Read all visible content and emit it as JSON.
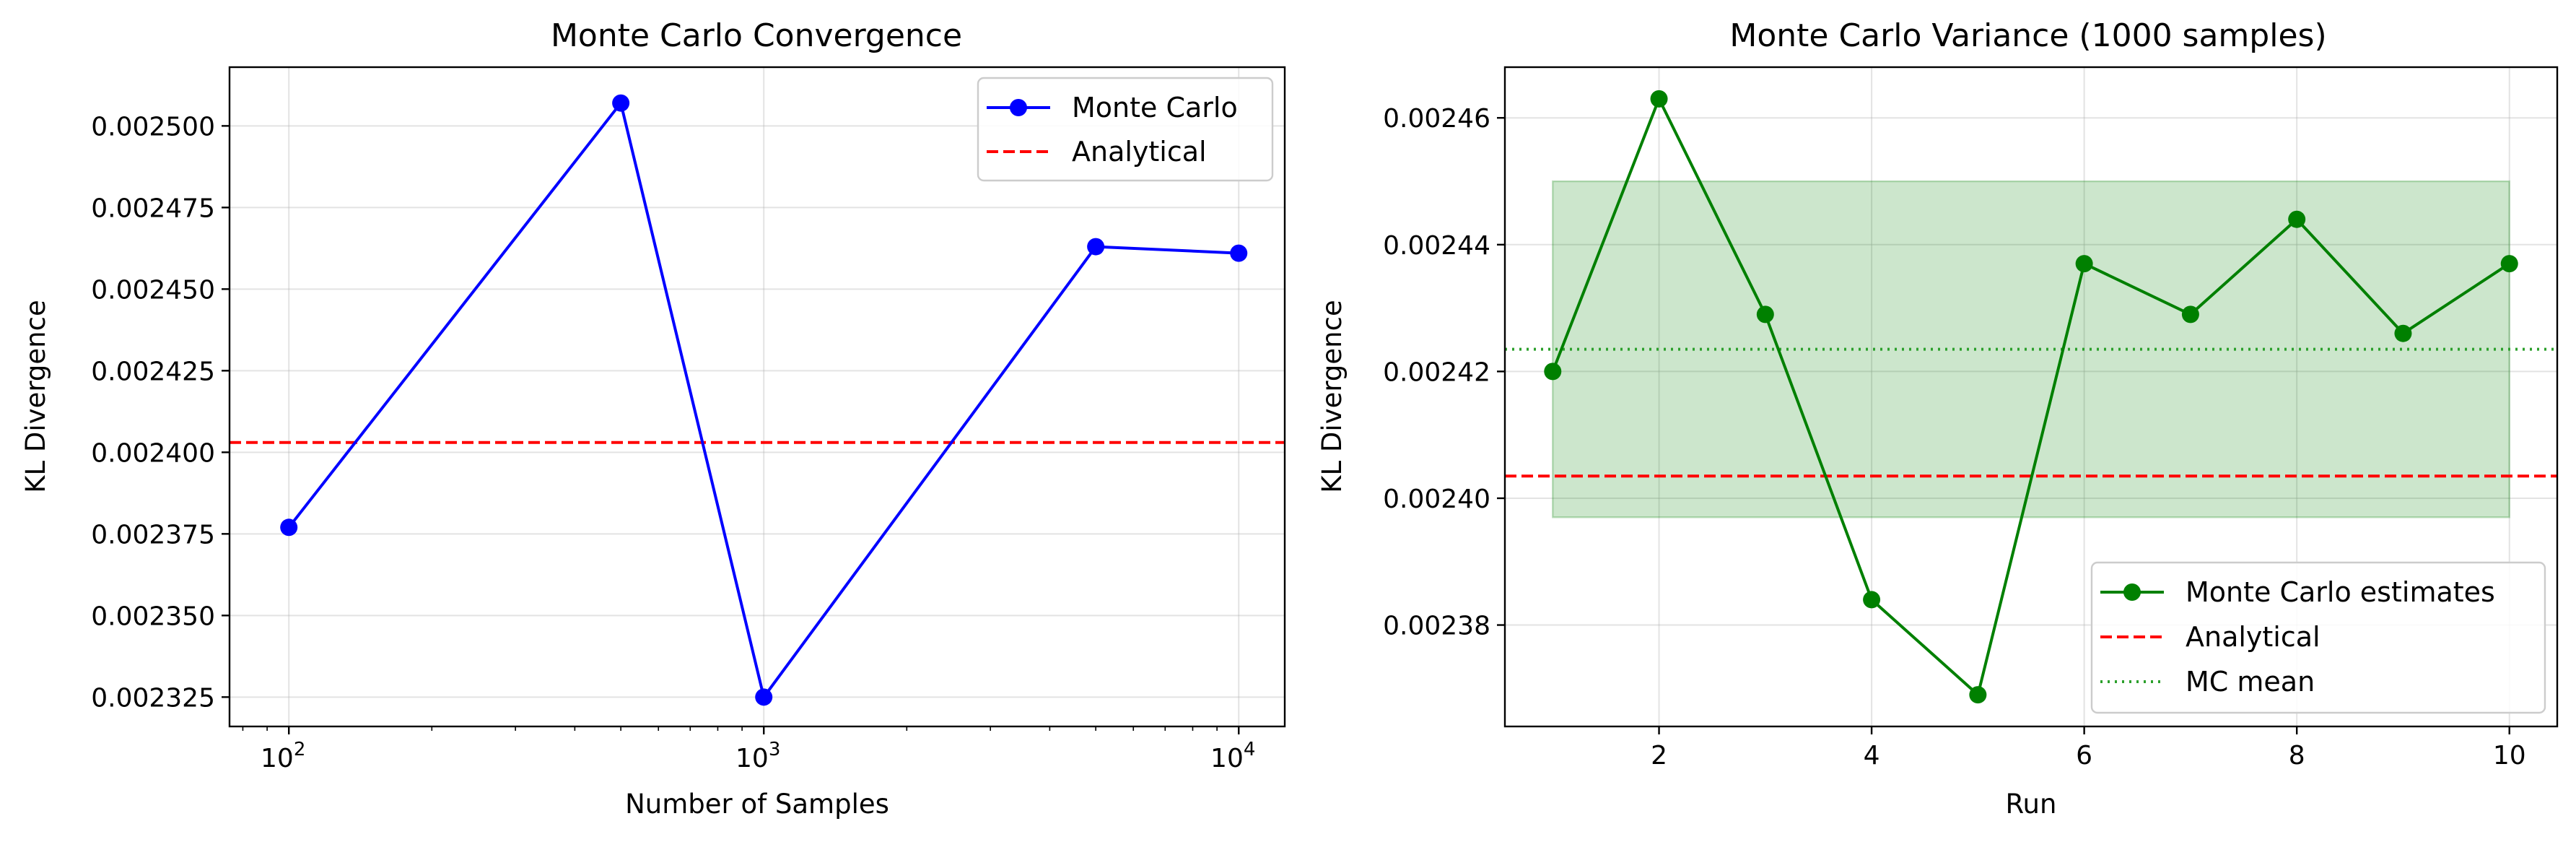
{
  "chart_data": [
    {
      "type": "line",
      "title": "Monte Carlo Convergence",
      "xlabel": "Number of Samples",
      "ylabel": "KL Divergence",
      "xscale": "log",
      "xlim": [
        75,
        12500
      ],
      "ylim": [
        0.002316,
        0.002518
      ],
      "xticks": [
        100,
        1000,
        10000
      ],
      "xtick_labels": [
        {
          "base": "10",
          "exp": "2"
        },
        {
          "base": "10",
          "exp": "3"
        },
        {
          "base": "10",
          "exp": "4"
        }
      ],
      "yticks": [
        0.002325,
        0.00235,
        0.002375,
        0.0024,
        0.002425,
        0.00245,
        0.002475,
        0.0025
      ],
      "ytick_labels": [
        "0.002325",
        "0.002350",
        "0.002375",
        "0.002400",
        "0.002425",
        "0.002450",
        "0.002475",
        "0.002500"
      ],
      "grid": true,
      "legend_position": "upper right",
      "series": [
        {
          "name": "Monte Carlo",
          "color": "#0000ff",
          "style": "solid",
          "marker": "circle",
          "x": [
            100,
            500,
            1000,
            5000,
            10000
          ],
          "y": [
            0.002377,
            0.002507,
            0.002325,
            0.002463,
            0.002461
          ]
        }
      ],
      "hlines": [
        {
          "name": "Analytical",
          "y": 0.002403,
          "color": "#ff0000",
          "style": "dashed"
        }
      ]
    },
    {
      "type": "line",
      "title": "Monte Carlo Variance (1000 samples)",
      "xlabel": "Run",
      "ylabel": "KL Divergence",
      "xscale": "linear",
      "xlim": [
        0.55,
        10.45
      ],
      "ylim": [
        0.002364,
        0.002468
      ],
      "xticks": [
        2,
        4,
        6,
        8,
        10
      ],
      "xtick_labels": [
        "2",
        "4",
        "6",
        "8",
        "10"
      ],
      "yticks": [
        0.00238,
        0.0024,
        0.00242,
        0.00244,
        0.00246
      ],
      "ytick_labels": [
        "0.00238",
        "0.00240",
        "0.00242",
        "0.00244",
        "0.00246"
      ],
      "grid": true,
      "legend_position": "lower right",
      "band": {
        "x": [
          1,
          10
        ],
        "y": [
          0.002397,
          0.00245
        ],
        "color": "#008000",
        "opacity": 0.2
      },
      "series": [
        {
          "name": "Monte Carlo estimates",
          "color": "#008000",
          "style": "solid",
          "marker": "circle",
          "x": [
            1,
            2,
            3,
            4,
            5,
            6,
            7,
            8,
            9,
            10
          ],
          "y": [
            0.00242,
            0.002463,
            0.002429,
            0.002384,
            0.002369,
            0.002437,
            0.002429,
            0.002444,
            0.002426,
            0.002437
          ]
        }
      ],
      "hlines": [
        {
          "name": "Analytical",
          "y": 0.0024035,
          "color": "#ff0000",
          "style": "dashed"
        },
        {
          "name": "MC mean",
          "y": 0.0024235,
          "color": "#2ca02c",
          "style": "dotted"
        }
      ]
    }
  ]
}
